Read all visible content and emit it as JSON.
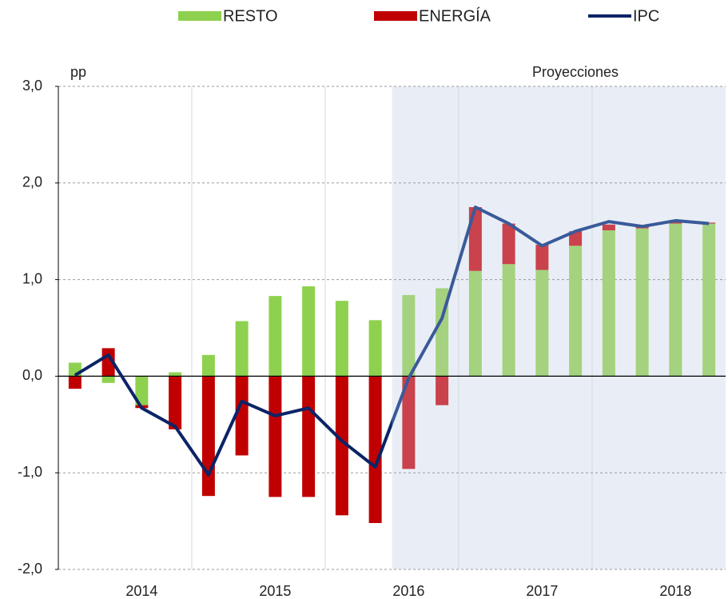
{
  "chart_data": {
    "type": "stacked-bar-line",
    "unit_label": "pp",
    "projection_label": "Proyecciones",
    "projection_from": 10,
    "categories": [
      null,
      null,
      null,
      null,
      null,
      null,
      null,
      null,
      null,
      null,
      null,
      null,
      null,
      null,
      null,
      null,
      null,
      null,
      null,
      null
    ],
    "years": [
      "2014",
      "2015",
      "2016",
      "2017",
      "2018"
    ],
    "series": [
      {
        "name": "RESTO",
        "color": "#8ed14f",
        "projection_color": "#a4d27e",
        "values": [
          0.14,
          -0.07,
          -0.3,
          0.04,
          0.22,
          0.57,
          0.83,
          0.93,
          0.78,
          0.58,
          0.84,
          0.91,
          1.09,
          1.16,
          1.1,
          1.35,
          1.51,
          1.53,
          1.58,
          1.58
        ]
      },
      {
        "name": "ENERGÍA",
        "color": "#c00000",
        "projection_color": "#c9424c",
        "values": [
          -0.13,
          0.29,
          -0.03,
          -0.55,
          -1.24,
          -0.82,
          -1.25,
          -1.25,
          -1.44,
          -1.52,
          -0.96,
          -0.3,
          0.66,
          0.42,
          0.26,
          0.15,
          0.06,
          0.03,
          0.02,
          0.01
        ]
      },
      {
        "name": "IPC",
        "type": "line",
        "color": "#0b2466",
        "projection_color": "#3a5a99",
        "values": [
          0.01,
          0.22,
          -0.33,
          -0.52,
          -1.02,
          -0.26,
          -0.41,
          -0.33,
          -0.67,
          -0.94,
          -0.02,
          0.6,
          1.75,
          1.58,
          1.35,
          1.5,
          1.6,
          1.55,
          1.61,
          1.58
        ]
      }
    ],
    "ylim": [
      -2,
      3
    ],
    "yticks": [
      {
        "value": -2,
        "label": "-2,0"
      },
      {
        "value": -1,
        "label": "-1,0"
      },
      {
        "value": 0,
        "label": "0,0"
      },
      {
        "value": 1,
        "label": "1,0"
      },
      {
        "value": 2,
        "label": "2,0"
      },
      {
        "value": 3,
        "label": "3,0"
      }
    ],
    "grid": true,
    "projection_shade": "#e9eef6"
  }
}
